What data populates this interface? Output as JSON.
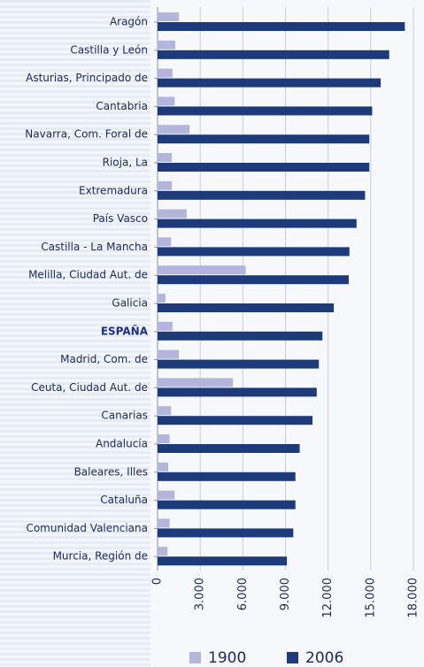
{
  "chart_data": {
    "type": "bar",
    "orientation": "horizontal",
    "categories": [
      "Aragón",
      "Castilla y León",
      "Asturias, Principado de",
      "Cantabria",
      "Navarra, Com. Foral de",
      "Rioja, La",
      "Extremadura",
      "País Vasco",
      "Castilla - La Mancha",
      "Melilla, Ciudad Aut. de",
      "Galicia",
      "ESPAÑA",
      "Madrid, Com. de",
      "Ceuta, Ciudad Aut. de",
      "Canarias",
      "Andalucía",
      "Baleares, Illes",
      "Cataluña",
      "Comunidad Valenciana",
      "Murcia, Región de"
    ],
    "highlight_index": 11,
    "series": [
      {
        "name": "1900",
        "color": "#b3b5dc",
        "values": [
          1500,
          1250,
          1050,
          1200,
          2250,
          1000,
          1000,
          2050,
          950,
          6200,
          550,
          1050,
          1500,
          5300,
          950,
          850,
          750,
          1200,
          850,
          700
        ]
      },
      {
        "name": "2006",
        "color": "#1d3b7b",
        "values": [
          17400,
          16300,
          15700,
          15100,
          14900,
          14900,
          14600,
          14000,
          13500,
          13450,
          12400,
          11600,
          11350,
          11200,
          10900,
          10000,
          9700,
          9700,
          9550,
          9100
        ]
      }
    ],
    "xlim": [
      0,
      18000
    ],
    "xticks": [
      0,
      {
        "value": 3000,
        "label": "3.000"
      },
      {
        "value": 6000,
        "label": "6.000"
      },
      {
        "value": 9000,
        "label": "9.000"
      },
      {
        "value": 12000,
        "label": "12.000"
      },
      {
        "value": 15000,
        "label": "15.000"
      },
      {
        "value": 18000,
        "label": "18.000"
      }
    ],
    "grid": true
  }
}
